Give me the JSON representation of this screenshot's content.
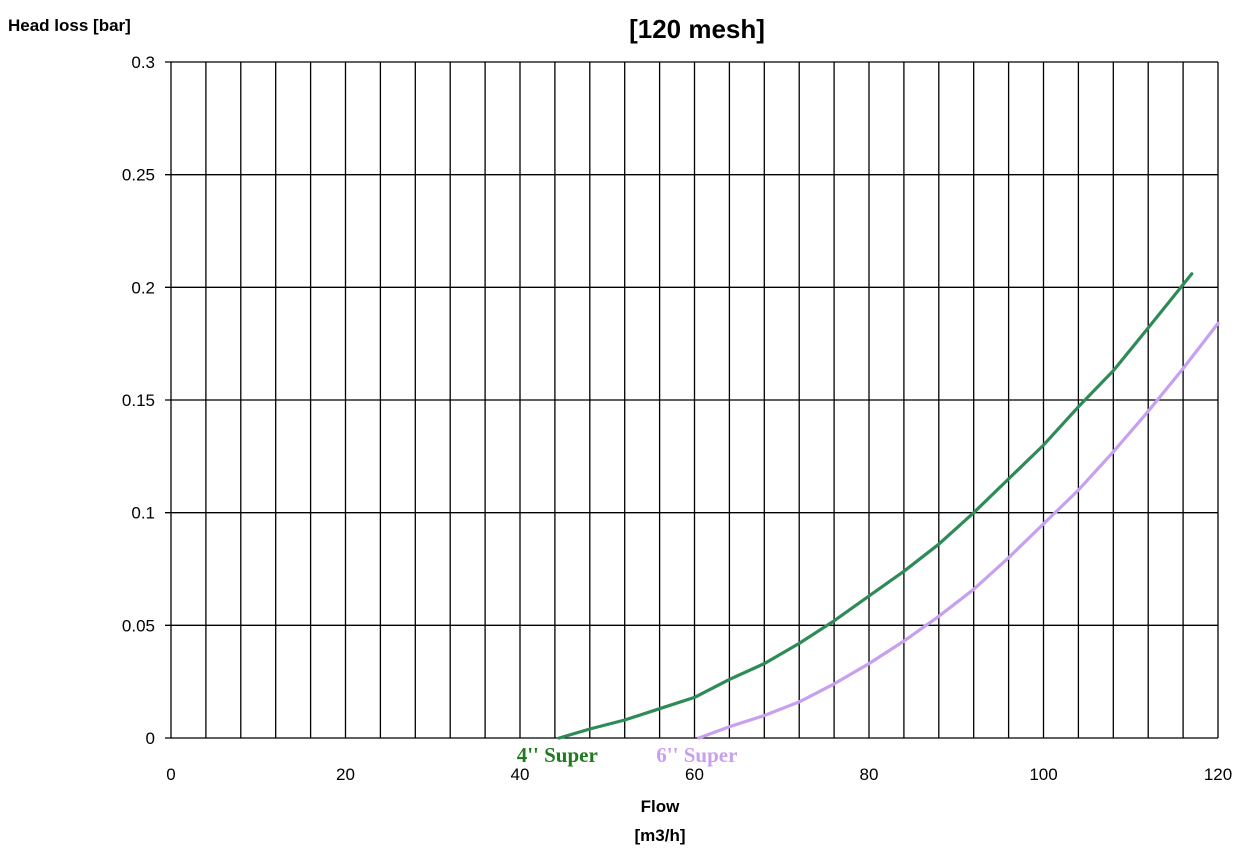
{
  "chart_data": {
    "type": "line",
    "title": "[120 mesh]",
    "ylabel": "Head loss [bar]",
    "xlabel_line1": "Flow",
    "xlabel_line2": "[m3/h]",
    "xlim": [
      0,
      120
    ],
    "ylim": [
      0,
      0.3
    ],
    "x_ticks": [
      "0",
      "20",
      "40",
      "60",
      "80",
      "100",
      "120"
    ],
    "y_ticks": [
      "0",
      "0.05",
      "0.1",
      "0.15",
      "0.2",
      "0.25",
      "0.3"
    ],
    "grid": true,
    "series": [
      {
        "name": "4'' Super",
        "color": "#2e8b57",
        "label_color": "#1e7b1e",
        "x": [
          44.5,
          48,
          52,
          56,
          60,
          64,
          68,
          72,
          76,
          80,
          84,
          88,
          92,
          96,
          100,
          104,
          108,
          112,
          117
        ],
        "y": [
          0,
          0.004,
          0.008,
          0.013,
          0.018,
          0.026,
          0.033,
          0.042,
          0.052,
          0.063,
          0.074,
          0.086,
          0.1,
          0.115,
          0.13,
          0.147,
          0.163,
          0.182,
          0.206
        ]
      },
      {
        "name": "6'' Super",
        "color": "#c8a0f0",
        "label_color": "#c8a0f0",
        "x": [
          60.5,
          64,
          68,
          72,
          76,
          80,
          84,
          88,
          92,
          96,
          100,
          104,
          108,
          112,
          116,
          120
        ],
        "y": [
          0,
          0.005,
          0.01,
          0.016,
          0.024,
          0.033,
          0.043,
          0.054,
          0.066,
          0.08,
          0.095,
          0.11,
          0.127,
          0.145,
          0.164,
          0.184
        ]
      }
    ]
  }
}
